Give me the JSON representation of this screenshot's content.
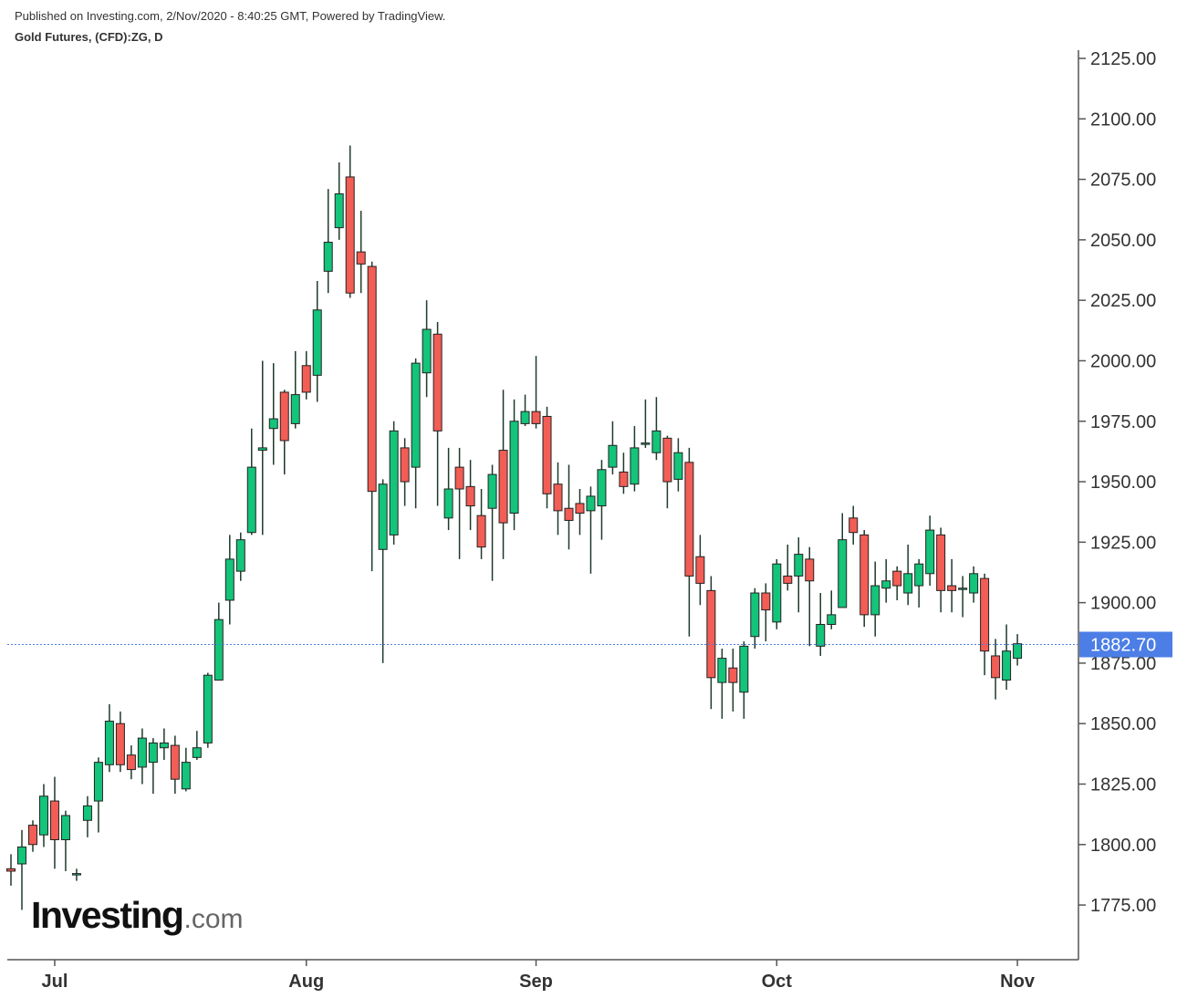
{
  "chart_data": {
    "type": "candlestick",
    "publisher": "Published on Investing.com, 2/Nov/2020 - 8:40:25 GMT, Powered by TradingView.",
    "title": "Gold Futures, (CFD):ZG, D",
    "logo": {
      "name": "Investing",
      "suffix": ".com"
    },
    "categories": [
      null,
      null,
      null,
      null,
      "Jul",
      null,
      null,
      null,
      null,
      null,
      null,
      null,
      null,
      null,
      null,
      null,
      null,
      null,
      null,
      null,
      null,
      null,
      null,
      null,
      null,
      null,
      null,
      "Aug",
      null,
      null,
      null,
      null,
      null,
      null,
      null,
      null,
      null,
      null,
      null,
      null,
      null,
      null,
      null,
      null,
      null,
      null,
      null,
      null,
      "Sep",
      null,
      null,
      null,
      null,
      null,
      null,
      null,
      null,
      null,
      null,
      null,
      null,
      null,
      null,
      null,
      null,
      null,
      null,
      null,
      null,
      null,
      "Oct",
      null,
      null,
      null,
      null,
      null,
      null,
      null,
      null,
      null,
      null,
      null,
      null,
      null,
      null,
      null,
      null,
      null,
      null,
      null,
      null,
      null,
      "Nov"
    ],
    "open": [
      1790,
      1792,
      1808,
      1804,
      1818,
      1802,
      1788,
      1810,
      1818,
      1833,
      1850,
      1837,
      1832,
      1834,
      1840,
      1841,
      1823,
      1836,
      1842,
      1868,
      1901,
      1913,
      1929,
      1963,
      1972,
      1987,
      1974,
      1998,
      1994,
      2037,
      2055,
      2076,
      2045,
      2039,
      1922,
      1928,
      1964,
      1956,
      1995,
      2011,
      1935,
      1956,
      1948,
      1936,
      1939,
      1963,
      1937,
      1974,
      1979,
      1977,
      1949,
      1939,
      1941,
      1938,
      1940,
      1956,
      1954,
      1949,
      1966,
      1962,
      1968,
      1951,
      1958,
      1919,
      1905,
      1867,
      1873,
      1863,
      1886,
      1904,
      1892,
      1911,
      1911,
      1918,
      1882,
      1891,
      1898,
      1935,
      1928,
      1895,
      1906,
      1913,
      1904,
      1907,
      1912,
      1928,
      1907,
      1906,
      1904,
      1910,
      1878,
      1868,
      1877
    ],
    "high": [
      1796,
      1806,
      1810,
      1825,
      1828,
      1814,
      1790,
      1820,
      1836,
      1858,
      1855,
      1841,
      1848,
      1844,
      1848,
      1845,
      1840,
      1847,
      1871,
      1900,
      1928,
      1929,
      1972,
      2000,
      1999,
      1988,
      2004,
      2004,
      2033,
      2071,
      2082,
      2089,
      2062,
      2041,
      1951,
      1975,
      1968,
      2001,
      2025,
      2016,
      1964,
      1964,
      1959,
      1947,
      1957,
      1988,
      1984,
      1986,
      2002,
      1981,
      1958,
      1957,
      1947,
      1948,
      1959,
      1975,
      1962,
      1973,
      1984,
      1985,
      1969,
      1968,
      1964,
      1928,
      1911,
      1881,
      1881,
      1884,
      1906,
      1908,
      1918,
      1924,
      1927,
      1923,
      1904,
      1905,
      1937,
      1940,
      1930,
      1917,
      1918,
      1915,
      1924,
      1918,
      1936,
      1931,
      1918,
      1911,
      1915,
      1912,
      1885,
      1891,
      1887
    ],
    "low": [
      1783,
      1773,
      1797,
      1799,
      1790,
      1789,
      1785,
      1803,
      1805,
      1830,
      1830,
      1827,
      1825,
      1821,
      1835,
      1821,
      1822,
      1835,
      1840,
      1868,
      1891,
      1909,
      1928,
      1928,
      1957,
      1953,
      1972,
      1984,
      1983,
      2028,
      2050,
      2026,
      2028,
      1913,
      1875,
      1924,
      1940,
      1939,
      1985,
      1940,
      1930,
      1918,
      1930,
      1918,
      1909,
      1918,
      1930,
      1973,
      1972,
      1939,
      1928,
      1922,
      1928,
      1912,
      1926,
      1953,
      1945,
      1946,
      1964,
      1959,
      1939,
      1946,
      1886,
      1899,
      1856,
      1852,
      1855,
      1852,
      1881,
      1884,
      1889,
      1905,
      1896,
      1882,
      1878,
      1889,
      1898,
      1924,
      1890,
      1886,
      1900,
      1901,
      1899,
      1898,
      1907,
      1896,
      1896,
      1894,
      1900,
      1870,
      1860,
      1864,
      1874
    ],
    "close": [
      1789,
      1799,
      1800,
      1820,
      1802,
      1812,
      1788,
      1816,
      1834,
      1851,
      1833,
      1831,
      1844,
      1842,
      1842,
      1827,
      1834,
      1840,
      1870,
      1893,
      1918,
      1926,
      1956,
      1964,
      1976,
      1967,
      1986,
      1987,
      2021,
      2049,
      2069,
      2028,
      2040,
      1946,
      1949,
      1971,
      1950,
      1999,
      2013,
      1971,
      1947,
      1947,
      1940,
      1923,
      1953,
      1933,
      1975,
      1979,
      1974,
      1945,
      1938,
      1934,
      1937,
      1944,
      1955,
      1965,
      1948,
      1964,
      1966,
      1971,
      1950,
      1962,
      1911,
      1908,
      1869,
      1877,
      1867,
      1882,
      1904,
      1897,
      1916,
      1908,
      1920,
      1909,
      1891,
      1895,
      1926,
      1929,
      1895,
      1907,
      1909,
      1907,
      1912,
      1916,
      1930,
      1905,
      1905,
      1906,
      1912,
      1880,
      1869,
      1880,
      1883
    ],
    "up_color": "#13c47a",
    "down_color": "#f25d55",
    "last_price": 1882.7,
    "last_price_label": "1882.70",
    "last_price_color": "#4c7ee6",
    "ylim": [
      1752.4,
      2128.4
    ],
    "yticks": [
      {
        "value": 1775,
        "label": "1775.00"
      },
      {
        "value": 1800,
        "label": "1800.00"
      },
      {
        "value": 1825,
        "label": "1825.00"
      },
      {
        "value": 1850,
        "label": "1850.00"
      },
      {
        "value": 1875,
        "label": "1875.00"
      },
      {
        "value": 1900,
        "label": "1900.00"
      },
      {
        "value": 1925,
        "label": "1925.00"
      },
      {
        "value": 1950,
        "label": "1950.00"
      },
      {
        "value": 1975,
        "label": "1975.00"
      },
      {
        "value": 2000,
        "label": "2000.00"
      },
      {
        "value": 2025,
        "label": "2025.00"
      },
      {
        "value": 2050,
        "label": "2050.00"
      },
      {
        "value": 2075,
        "label": "2075.00"
      },
      {
        "value": 2100,
        "label": "2100.00"
      },
      {
        "value": 2125,
        "label": "2125.00"
      }
    ]
  }
}
